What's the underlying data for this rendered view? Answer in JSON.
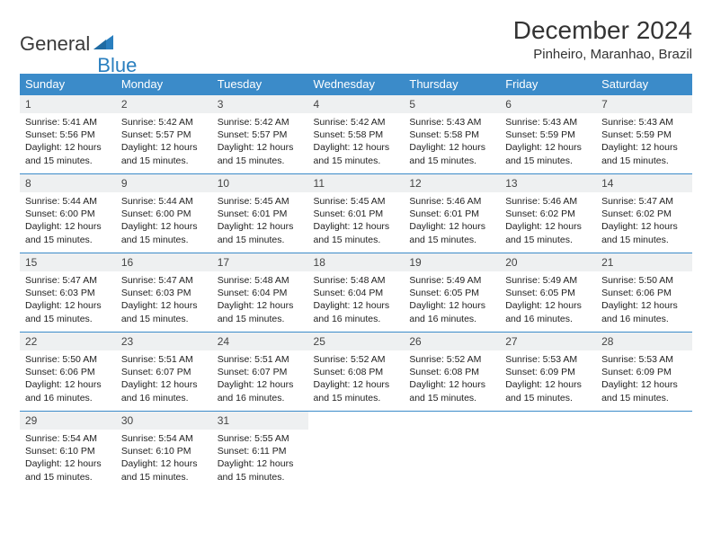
{
  "logo": {
    "text1": "General",
    "text2": "Blue"
  },
  "title": "December 2024",
  "location": "Pinheiro, Maranhao, Brazil",
  "colors": {
    "header_bg": "#3b8bc9",
    "header_fg": "#ffffff",
    "daynum_bg": "#eef0f1",
    "border": "#3b8bc9",
    "logo_dark": "#3a3a3a",
    "logo_blue": "#2a7fbf"
  },
  "weekdays": [
    "Sunday",
    "Monday",
    "Tuesday",
    "Wednesday",
    "Thursday",
    "Friday",
    "Saturday"
  ],
  "weeks": [
    [
      {
        "n": "1",
        "sr": "5:41 AM",
        "ss": "5:56 PM",
        "dl": "12 hours and 15 minutes."
      },
      {
        "n": "2",
        "sr": "5:42 AM",
        "ss": "5:57 PM",
        "dl": "12 hours and 15 minutes."
      },
      {
        "n": "3",
        "sr": "5:42 AM",
        "ss": "5:57 PM",
        "dl": "12 hours and 15 minutes."
      },
      {
        "n": "4",
        "sr": "5:42 AM",
        "ss": "5:58 PM",
        "dl": "12 hours and 15 minutes."
      },
      {
        "n": "5",
        "sr": "5:43 AM",
        "ss": "5:58 PM",
        "dl": "12 hours and 15 minutes."
      },
      {
        "n": "6",
        "sr": "5:43 AM",
        "ss": "5:59 PM",
        "dl": "12 hours and 15 minutes."
      },
      {
        "n": "7",
        "sr": "5:43 AM",
        "ss": "5:59 PM",
        "dl": "12 hours and 15 minutes."
      }
    ],
    [
      {
        "n": "8",
        "sr": "5:44 AM",
        "ss": "6:00 PM",
        "dl": "12 hours and 15 minutes."
      },
      {
        "n": "9",
        "sr": "5:44 AM",
        "ss": "6:00 PM",
        "dl": "12 hours and 15 minutes."
      },
      {
        "n": "10",
        "sr": "5:45 AM",
        "ss": "6:01 PM",
        "dl": "12 hours and 15 minutes."
      },
      {
        "n": "11",
        "sr": "5:45 AM",
        "ss": "6:01 PM",
        "dl": "12 hours and 15 minutes."
      },
      {
        "n": "12",
        "sr": "5:46 AM",
        "ss": "6:01 PM",
        "dl": "12 hours and 15 minutes."
      },
      {
        "n": "13",
        "sr": "5:46 AM",
        "ss": "6:02 PM",
        "dl": "12 hours and 15 minutes."
      },
      {
        "n": "14",
        "sr": "5:47 AM",
        "ss": "6:02 PM",
        "dl": "12 hours and 15 minutes."
      }
    ],
    [
      {
        "n": "15",
        "sr": "5:47 AM",
        "ss": "6:03 PM",
        "dl": "12 hours and 15 minutes."
      },
      {
        "n": "16",
        "sr": "5:47 AM",
        "ss": "6:03 PM",
        "dl": "12 hours and 15 minutes."
      },
      {
        "n": "17",
        "sr": "5:48 AM",
        "ss": "6:04 PM",
        "dl": "12 hours and 15 minutes."
      },
      {
        "n": "18",
        "sr": "5:48 AM",
        "ss": "6:04 PM",
        "dl": "12 hours and 16 minutes."
      },
      {
        "n": "19",
        "sr": "5:49 AM",
        "ss": "6:05 PM",
        "dl": "12 hours and 16 minutes."
      },
      {
        "n": "20",
        "sr": "5:49 AM",
        "ss": "6:05 PM",
        "dl": "12 hours and 16 minutes."
      },
      {
        "n": "21",
        "sr": "5:50 AM",
        "ss": "6:06 PM",
        "dl": "12 hours and 16 minutes."
      }
    ],
    [
      {
        "n": "22",
        "sr": "5:50 AM",
        "ss": "6:06 PM",
        "dl": "12 hours and 16 minutes."
      },
      {
        "n": "23",
        "sr": "5:51 AM",
        "ss": "6:07 PM",
        "dl": "12 hours and 16 minutes."
      },
      {
        "n": "24",
        "sr": "5:51 AM",
        "ss": "6:07 PM",
        "dl": "12 hours and 16 minutes."
      },
      {
        "n": "25",
        "sr": "5:52 AM",
        "ss": "6:08 PM",
        "dl": "12 hours and 15 minutes."
      },
      {
        "n": "26",
        "sr": "5:52 AM",
        "ss": "6:08 PM",
        "dl": "12 hours and 15 minutes."
      },
      {
        "n": "27",
        "sr": "5:53 AM",
        "ss": "6:09 PM",
        "dl": "12 hours and 15 minutes."
      },
      {
        "n": "28",
        "sr": "5:53 AM",
        "ss": "6:09 PM",
        "dl": "12 hours and 15 minutes."
      }
    ],
    [
      {
        "n": "29",
        "sr": "5:54 AM",
        "ss": "6:10 PM",
        "dl": "12 hours and 15 minutes."
      },
      {
        "n": "30",
        "sr": "5:54 AM",
        "ss": "6:10 PM",
        "dl": "12 hours and 15 minutes."
      },
      {
        "n": "31",
        "sr": "5:55 AM",
        "ss": "6:11 PM",
        "dl": "12 hours and 15 minutes."
      },
      null,
      null,
      null,
      null
    ]
  ],
  "labels": {
    "sunrise": "Sunrise:",
    "sunset": "Sunset:",
    "daylight": "Daylight:"
  }
}
